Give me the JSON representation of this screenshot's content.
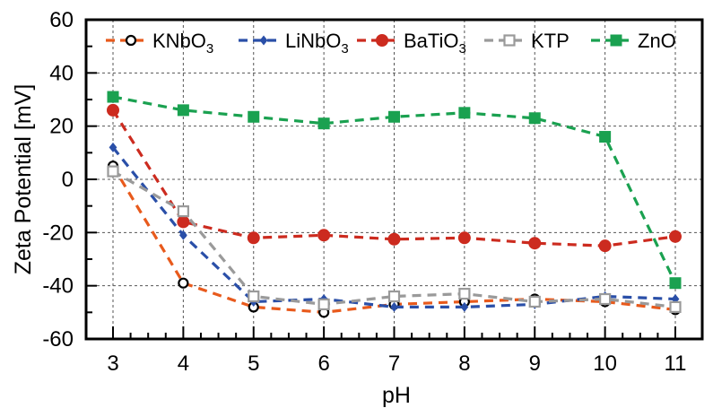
{
  "chart_data": {
    "type": "line",
    "title": "",
    "xlabel": "pH",
    "ylabel": "Zeta Potential [mV]",
    "xlim": [
      3,
      11
    ],
    "ylim": [
      -60,
      60
    ],
    "x_ticks": [
      3,
      4,
      5,
      6,
      7,
      8,
      9,
      10,
      11
    ],
    "y_ticks": [
      -60,
      -40,
      -20,
      0,
      20,
      40,
      60
    ],
    "grid": true,
    "legend_position": "top",
    "series": [
      {
        "name": "KNbO3",
        "legend_base": "KNbO",
        "legend_sub": "3",
        "color": "#e85a1c",
        "marker": "open-circle",
        "marker_color": "#000000",
        "x": [
          3,
          4,
          5,
          6,
          7,
          8,
          9,
          10,
          11
        ],
        "y": [
          5,
          -39,
          -48,
          -50,
          -47,
          -46,
          -45,
          -46,
          -49
        ]
      },
      {
        "name": "LiNbO3",
        "legend_base": "LiNbO",
        "legend_sub": "3",
        "color": "#2a4fa8",
        "marker": "filled-diamond",
        "marker_color": "#2a4fa8",
        "x": [
          3,
          4,
          5,
          6,
          7,
          8,
          9,
          10,
          11
        ],
        "y": [
          12,
          -21,
          -46,
          -45,
          -48,
          -48,
          -47,
          -44,
          -45
        ]
      },
      {
        "name": "BaTiO3",
        "legend_base": "BaTiO",
        "legend_sub": "3",
        "color": "#cc2b1f",
        "marker": "filled-circle",
        "marker_color": "#cc2b1f",
        "x": [
          3,
          4,
          5,
          6,
          7,
          8,
          9,
          10,
          11
        ],
        "y": [
          26,
          -16,
          -22,
          -21,
          -22.5,
          -22,
          -24,
          -25,
          -21.5
        ]
      },
      {
        "name": "KTP",
        "legend_base": "KTP",
        "legend_sub": "",
        "color": "#9a9a9a",
        "marker": "open-square",
        "marker_color": "#9a9a9a",
        "x": [
          3,
          4,
          5,
          6,
          7,
          8,
          9,
          10,
          11
        ],
        "y": [
          3,
          -12,
          -44,
          -47,
          -44,
          -43,
          -46,
          -45,
          -48
        ]
      },
      {
        "name": "ZnO",
        "legend_base": "ZnO",
        "legend_sub": "",
        "color": "#1aa150",
        "marker": "filled-square",
        "marker_color": "#1aa150",
        "x": [
          3,
          4,
          5,
          6,
          7,
          8,
          9,
          10,
          11
        ],
        "y": [
          31,
          26,
          23.5,
          21,
          23.5,
          25,
          23,
          16,
          -39
        ]
      }
    ]
  }
}
